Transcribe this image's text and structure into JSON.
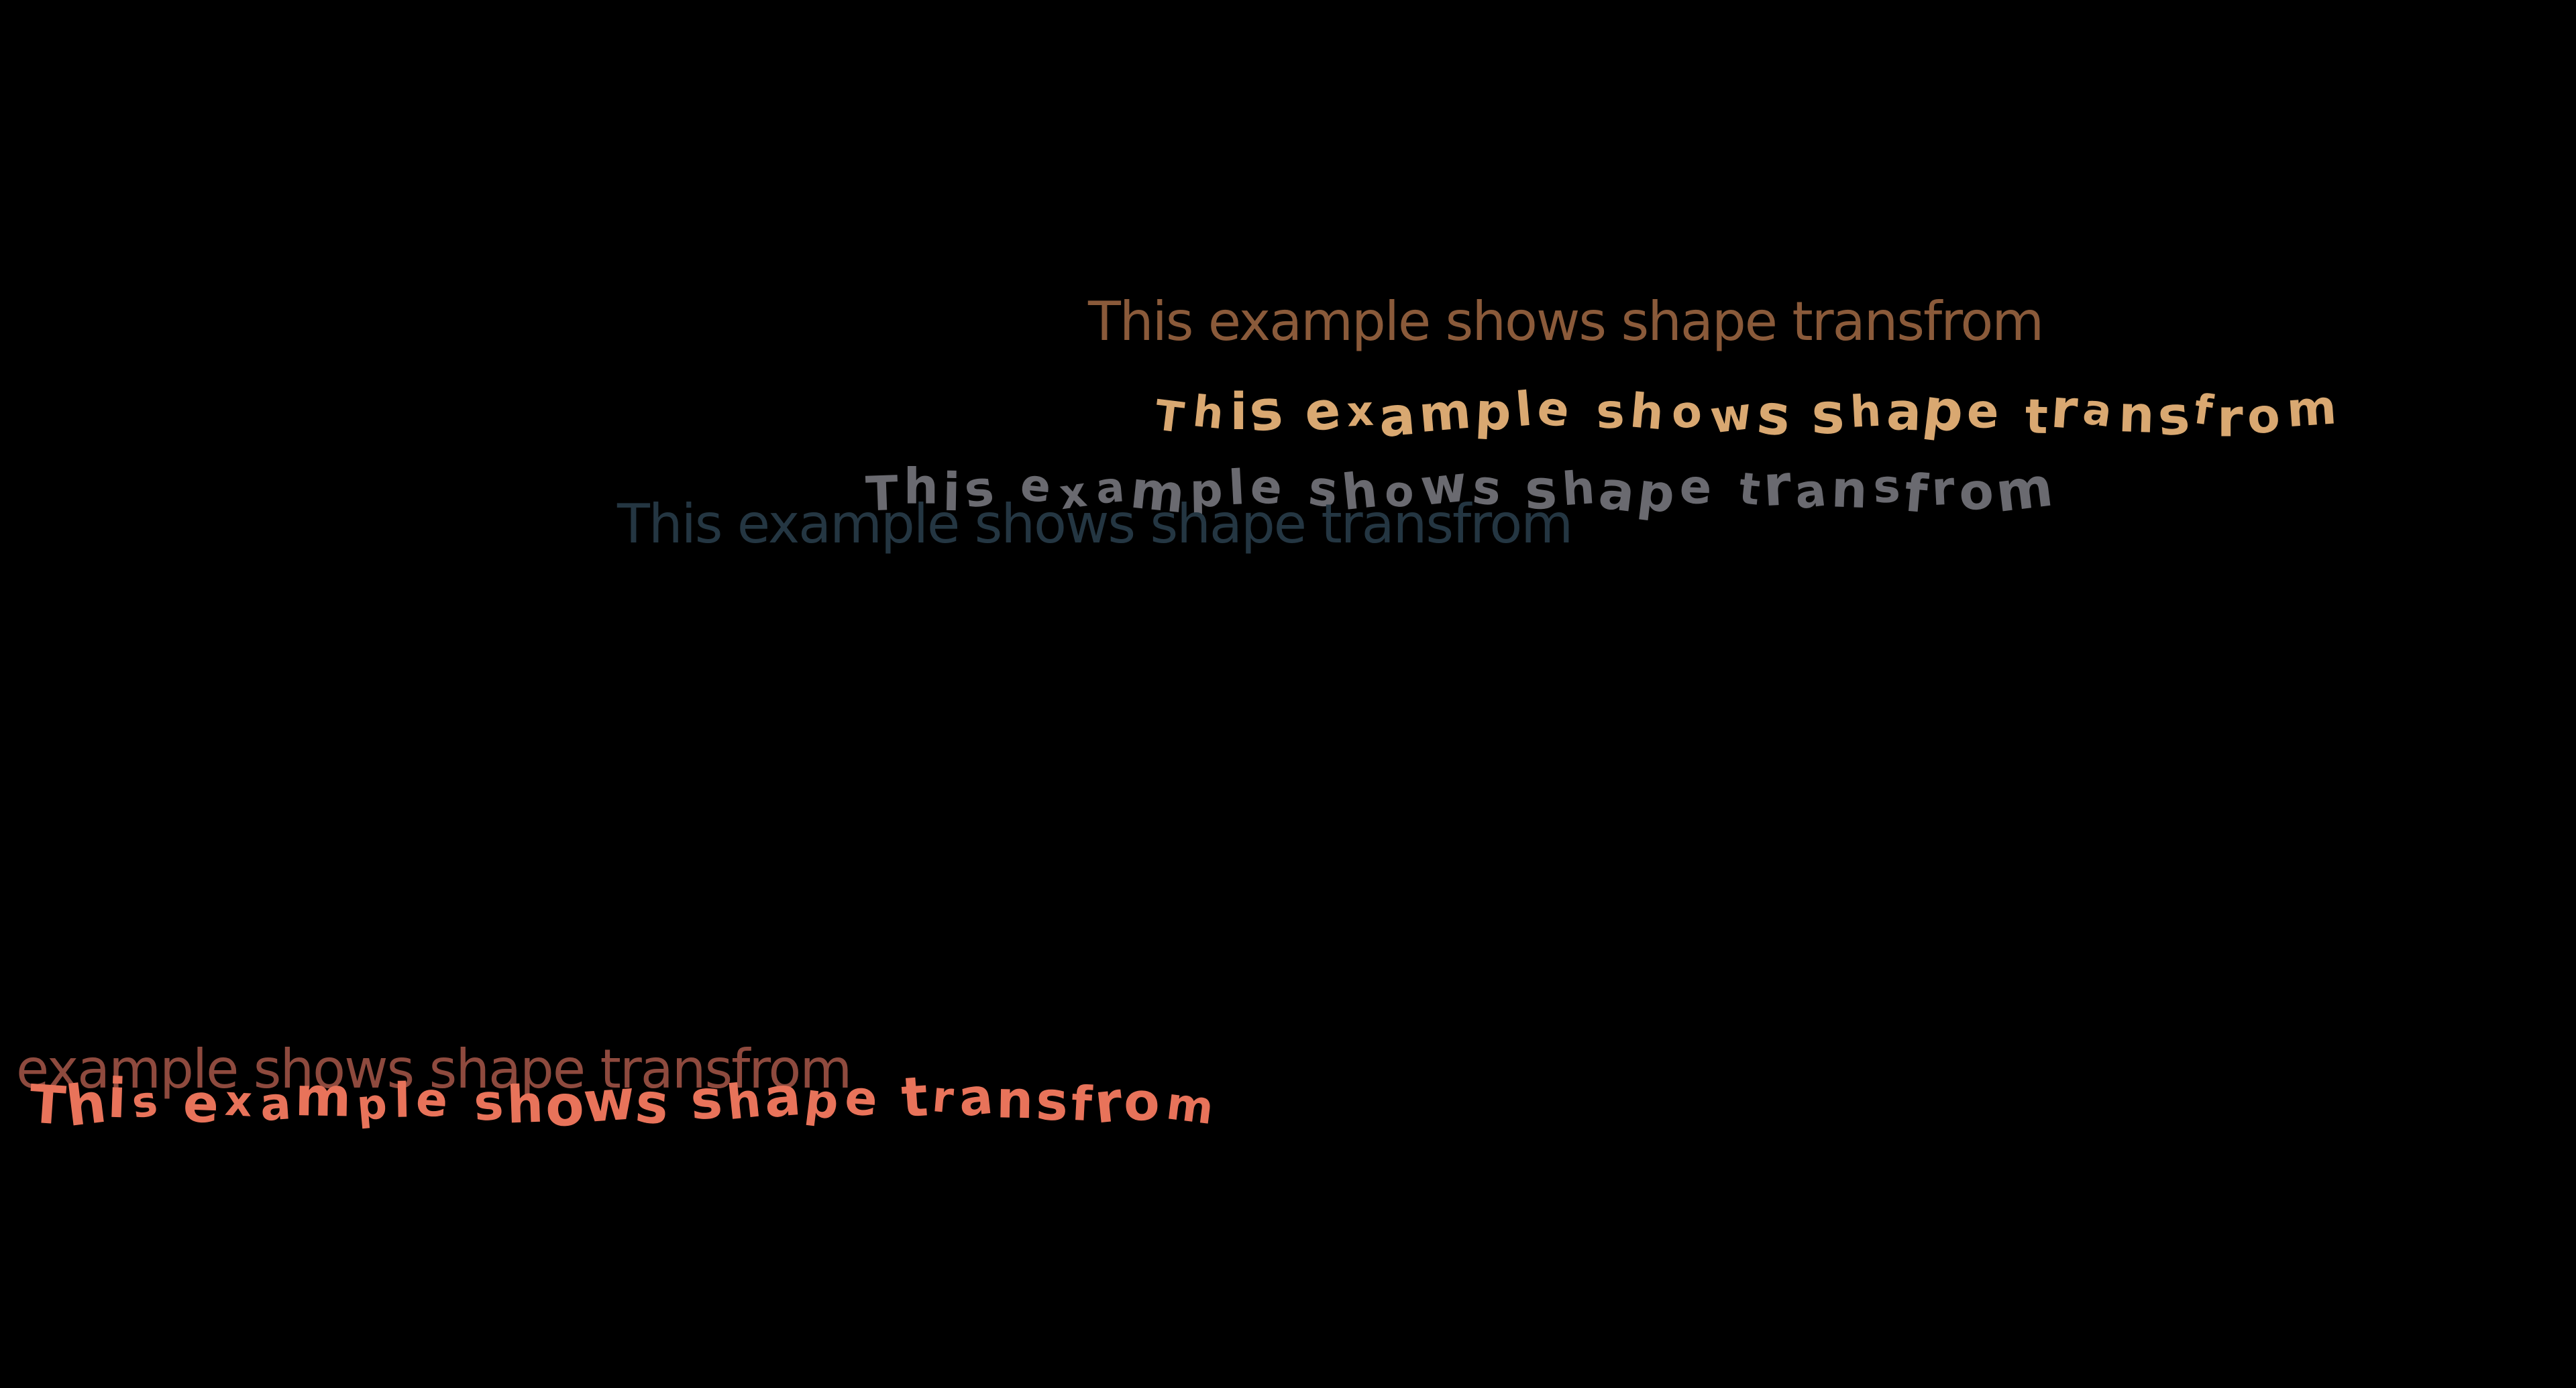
{
  "colors": {
    "background": "#000000",
    "text_brown": "#8a5a3a",
    "text_tan": "#d9a871",
    "text_gray": "#6a6a70",
    "text_slate": "#243642",
    "text_rust": "#8e4a3e",
    "text_coral": "#e8735a"
  },
  "texts": {
    "plain_1": "This example shows shape transfrom",
    "morph_1": "This example shows shape transfrom",
    "morph_2": "This example shows shape transfrom",
    "plain_2": "This example shows shape transfrom",
    "plain_3": "example shows shape transfrom",
    "morph_3": "This example shows shape transfrom"
  }
}
